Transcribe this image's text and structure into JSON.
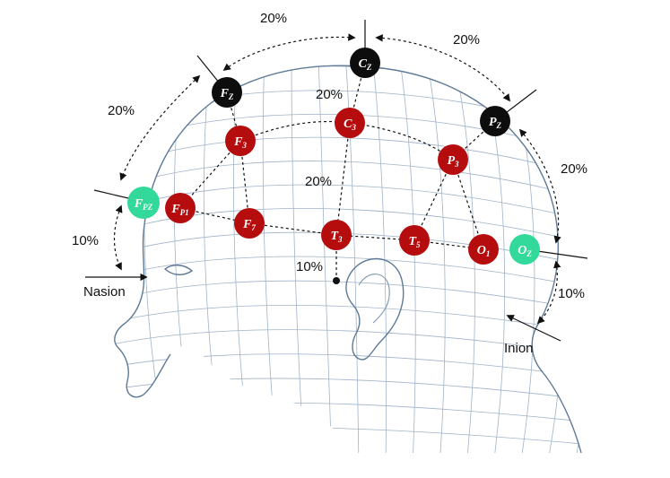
{
  "colors": {
    "midline": "#0d0d0d",
    "lateral": "#b50d0d",
    "reference": "#33d99a"
  },
  "labels": {
    "nasion": "Nasion",
    "inion": "Inion"
  },
  "percentages": {
    "top_left": "20%",
    "top_right": "20%",
    "left_upper": "20%",
    "right_upper": "20%",
    "center_upper": "20%",
    "center_lower": "20%",
    "front_lower": "10%",
    "back_lower": "10%",
    "temporal": "10%"
  },
  "electrodes": [
    {
      "id": "fz",
      "letter": "F",
      "sub": "Z",
      "group": "midline"
    },
    {
      "id": "cz",
      "letter": "C",
      "sub": "Z",
      "group": "midline"
    },
    {
      "id": "pz",
      "letter": "P",
      "sub": "Z",
      "group": "midline"
    },
    {
      "id": "fpz",
      "letter": "F",
      "sub": "PZ",
      "group": "reference"
    },
    {
      "id": "oz",
      "letter": "O",
      "sub": "Z",
      "group": "reference"
    },
    {
      "id": "fp1",
      "letter": "F",
      "sub": "P1",
      "group": "lateral"
    },
    {
      "id": "f3",
      "letter": "F",
      "sub": "3",
      "group": "lateral"
    },
    {
      "id": "c3",
      "letter": "C",
      "sub": "3",
      "group": "lateral"
    },
    {
      "id": "p3",
      "letter": "P",
      "sub": "3",
      "group": "lateral"
    },
    {
      "id": "f7",
      "letter": "F",
      "sub": "7",
      "group": "lateral"
    },
    {
      "id": "t3",
      "letter": "T",
      "sub": "3",
      "group": "lateral"
    },
    {
      "id": "t5",
      "letter": "T",
      "sub": "5",
      "group": "lateral"
    },
    {
      "id": "o1",
      "letter": "O",
      "sub": "1",
      "group": "lateral"
    }
  ]
}
